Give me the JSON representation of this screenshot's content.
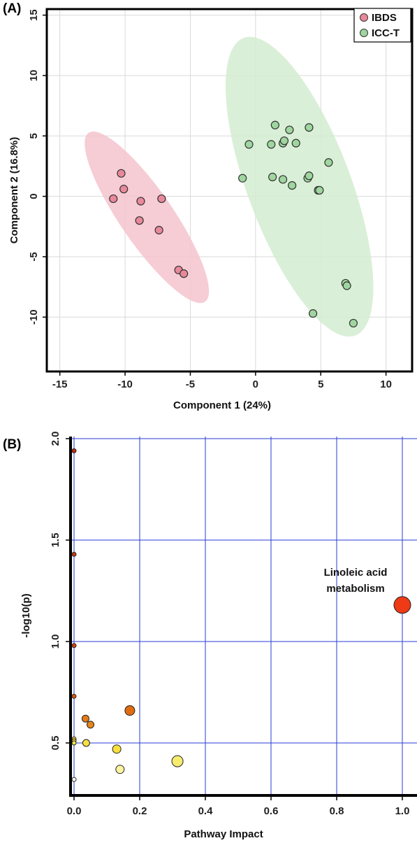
{
  "panels": {
    "a_label": "(A)",
    "b_label": "(B)"
  },
  "chart_data": [
    {
      "type": "scatter",
      "title": "",
      "xlabel": "Component 1 (24%)",
      "ylabel": "Component 2 (16.8%)",
      "xlim": [
        -16,
        12
      ],
      "ylim": [
        -14.5,
        15.5
      ],
      "xticks": [
        -15,
        -10,
        -5,
        0,
        5,
        10
      ],
      "yticks": [
        -10,
        -5,
        0,
        5,
        10,
        15
      ],
      "grid": true,
      "legend": "top-right",
      "series": [
        {
          "name": "IBDS",
          "color": "#e8899b",
          "ellipse_color": "#f5c3ce",
          "points": [
            [
              -10.3,
              1.9
            ],
            [
              -10.1,
              0.6
            ],
            [
              -10.9,
              -0.2
            ],
            [
              -8.8,
              -0.4
            ],
            [
              -7.2,
              -0.2
            ],
            [
              -8.9,
              -2.0
            ],
            [
              -7.4,
              -2.8
            ],
            [
              -5.9,
              -6.1
            ],
            [
              -5.5,
              -6.4
            ]
          ]
        },
        {
          "name": "ICC-T",
          "color": "#9fd69f",
          "ellipse_color": "#d4ecd0",
          "points": [
            [
              1.5,
              5.9
            ],
            [
              2.6,
              5.5
            ],
            [
              4.1,
              5.7
            ],
            [
              -0.5,
              4.3
            ],
            [
              1.2,
              4.3
            ],
            [
              2.1,
              4.4
            ],
            [
              2.2,
              4.6
            ],
            [
              3.1,
              4.4
            ],
            [
              5.6,
              2.8
            ],
            [
              -1.0,
              1.5
            ],
            [
              1.3,
              1.6
            ],
            [
              2.1,
              1.4
            ],
            [
              2.8,
              0.9
            ],
            [
              4.0,
              1.5
            ],
            [
              4.1,
              1.7
            ],
            [
              4.8,
              0.5
            ],
            [
              4.9,
              0.5
            ],
            [
              6.9,
              -7.2
            ],
            [
              7.0,
              -7.4
            ],
            [
              4.4,
              -9.7
            ],
            [
              7.5,
              -10.5
            ]
          ]
        }
      ]
    },
    {
      "type": "scatter",
      "title": "",
      "xlabel": "Pathway Impact",
      "ylabel": "-log10(p)",
      "xlim": [
        0.0,
        1.0
      ],
      "ylim": [
        0.5,
        2.0
      ],
      "xticks": [
        0.0,
        0.2,
        0.4,
        0.6,
        0.8,
        1.0
      ],
      "xtick_labels": [
        "0.0",
        "0.2",
        "0.4",
        "0.6",
        "0.8",
        "1.0"
      ],
      "yticks": [
        0.5,
        1.0,
        1.5,
        2.0
      ],
      "ytick_labels": [
        "0.5",
        "1.0",
        "1.5",
        "2.0"
      ],
      "grid": true,
      "annotation": {
        "line1": "Linoleic acid",
        "line2": "metabolism"
      },
      "points": [
        {
          "x": 0.0,
          "y": 1.94,
          "size": 3,
          "color": "#c82a10"
        },
        {
          "x": 0.0,
          "y": 1.43,
          "size": 3,
          "color": "#cf3510"
        },
        {
          "x": 0.0,
          "y": 0.98,
          "size": 3,
          "color": "#d6400f"
        },
        {
          "x": 0.0,
          "y": 0.73,
          "size": 3,
          "color": "#e0560e"
        },
        {
          "x": 0.0,
          "y": 0.52,
          "size": 3,
          "color": "#f2d23a"
        },
        {
          "x": 0.0,
          "y": 0.51,
          "size": 3,
          "color": "#f5dc40"
        },
        {
          "x": 0.0,
          "y": 0.5,
          "size": 3,
          "color": "#f7e44a"
        },
        {
          "x": 0.0,
          "y": 0.32,
          "size": 3,
          "color": "#ffffff"
        },
        {
          "x": 0.035,
          "y": 0.62,
          "size": 5,
          "color": "#e87a14"
        },
        {
          "x": 0.05,
          "y": 0.59,
          "size": 5,
          "color": "#e8861a"
        },
        {
          "x": 0.037,
          "y": 0.5,
          "size": 5,
          "color": "#f5e040"
        },
        {
          "x": 0.17,
          "y": 0.66,
          "size": 7,
          "color": "#e06c12"
        },
        {
          "x": 0.13,
          "y": 0.47,
          "size": 6,
          "color": "#f7e03c"
        },
        {
          "x": 0.14,
          "y": 0.37,
          "size": 6,
          "color": "#fbf3a0"
        },
        {
          "x": 0.315,
          "y": 0.41,
          "size": 8,
          "color": "#f8ec70"
        },
        {
          "x": 1.0,
          "y": 1.18,
          "size": 12,
          "color": "#ee3a16"
        }
      ]
    }
  ]
}
